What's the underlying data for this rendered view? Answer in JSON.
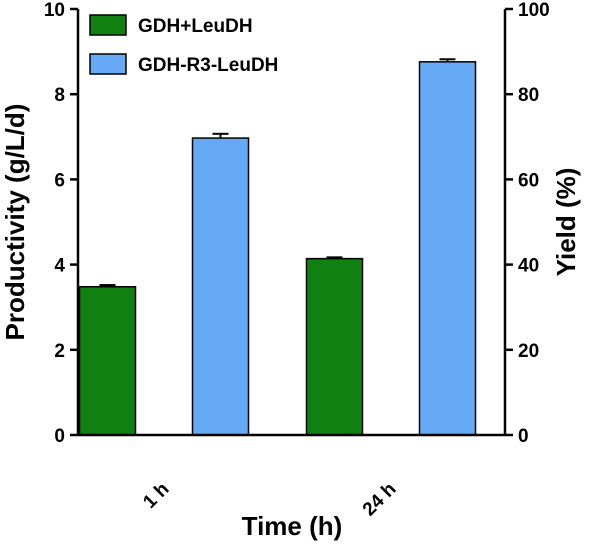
{
  "chart_data": {
    "type": "bar",
    "categories": [
      "1 h",
      "24 h"
    ],
    "series": [
      {
        "name": "GDH+LeuDH",
        "color": "#108010",
        "values": [
          3.48,
          4.14
        ],
        "errors": [
          0.04,
          0.03
        ]
      },
      {
        "name": "GDH-R3-LeuDH",
        "color": "#66AAF5",
        "values": [
          6.97,
          8.76
        ],
        "errors": [
          0.1,
          0.06
        ]
      }
    ],
    "xlabel": "Time (h)",
    "ylabel": "Productivity (g/L/d)",
    "y2label": "Yield (%)",
    "ylim": [
      0,
      10
    ],
    "y2lim": [
      0,
      100
    ],
    "yticks": [
      "0",
      "2",
      "4",
      "6",
      "8",
      "10"
    ],
    "y2ticks": [
      "0",
      "20",
      "40",
      "60",
      "80",
      "100"
    ],
    "grid": false,
    "legend_position": "top-left"
  }
}
